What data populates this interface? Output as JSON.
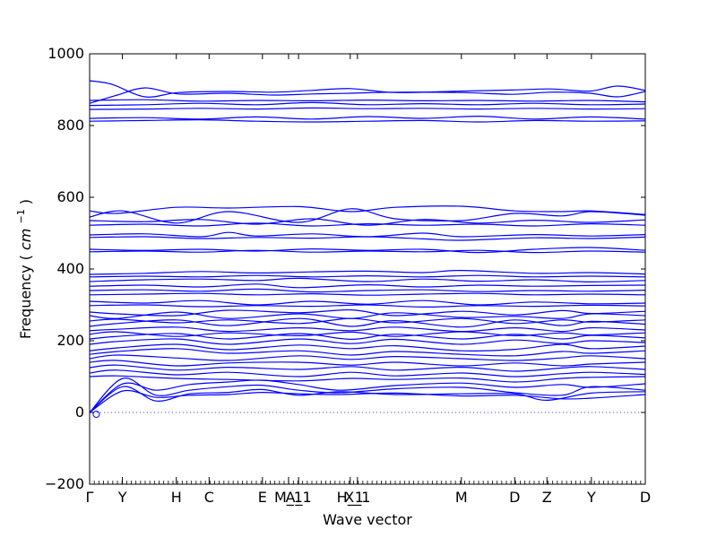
{
  "chart_data": {
    "type": "line",
    "title": "",
    "xlabel": "Wave vector",
    "ylabel": "Frequency",
    "ylabel_unit_base": "cm",
    "ylabel_unit_exp": "−1",
    "ylim": [
      -200,
      1000
    ],
    "yticks": [
      "−200",
      "0",
      "200",
      "400",
      "600",
      "800",
      "1000"
    ],
    "ytick_values": [
      -200,
      0,
      200,
      400,
      600,
      800,
      1000
    ],
    "x_range": [
      0,
      1
    ],
    "xticks": [
      {
        "label": "Γ",
        "x": 0.0
      },
      {
        "label": "Y",
        "x": 0.059
      },
      {
        "label": "H",
        "x": 0.156
      },
      {
        "label": "C",
        "x": 0.215
      },
      {
        "label": "E",
        "x": 0.311
      },
      {
        "label": "M_1",
        "x": 0.358
      },
      {
        "label": "A_1",
        "x": 0.376
      },
      {
        "label": "H_1",
        "x": 0.469
      },
      {
        "label": "X_1",
        "x": 0.482
      },
      {
        "label": "M",
        "x": 0.669
      },
      {
        "label": "D",
        "x": 0.765
      },
      {
        "label": "Z",
        "x": 0.823
      },
      {
        "label": "Y",
        "x": 0.903
      },
      {
        "label": "D",
        "x": 1.0
      }
    ],
    "grid": false,
    "zero_line": true,
    "colors": {
      "band": "#0000ff",
      "axis": "#000000",
      "zero_line": "#3344ff"
    },
    "series": [
      {
        "x": [
          0,
          0.04,
          0.1,
          0.16,
          0.25,
          0.33,
          0.4,
          0.47,
          0.55,
          0.67,
          0.76,
          0.83,
          0.9,
          0.95,
          1.0
        ],
        "values": [
          925,
          915,
          880,
          892,
          895,
          893,
          898,
          903,
          892,
          896,
          899,
          902,
          896,
          910,
          898
        ]
      },
      {
        "x": [
          0,
          0.05,
          0.1,
          0.16,
          0.25,
          0.33,
          0.4,
          0.47,
          0.55,
          0.67,
          0.76,
          0.83,
          0.9,
          0.95,
          1.0
        ],
        "values": [
          862,
          885,
          905,
          888,
          890,
          885,
          888,
          890,
          893,
          892,
          887,
          893,
          890,
          880,
          895
        ]
      },
      {
        "x": [
          0,
          0.1,
          0.2,
          0.3,
          0.4,
          0.5,
          0.6,
          0.7,
          0.8,
          0.9,
          1.0
        ],
        "values": [
          870,
          872,
          868,
          870,
          869,
          871,
          869,
          870,
          868,
          870,
          866
        ]
      },
      {
        "x": [
          0,
          0.1,
          0.2,
          0.3,
          0.4,
          0.5,
          0.6,
          0.7,
          0.8,
          0.9,
          1.0
        ],
        "values": [
          856,
          858,
          862,
          858,
          864,
          858,
          861,
          858,
          862,
          858,
          860
        ]
      },
      {
        "x": [
          0,
          0.1,
          0.2,
          0.3,
          0.4,
          0.5,
          0.6,
          0.7,
          0.8,
          0.9,
          1.0
        ],
        "values": [
          845,
          846,
          848,
          846,
          849,
          847,
          848,
          846,
          848,
          846,
          847
        ]
      },
      {
        "x": [
          0,
          0.1,
          0.2,
          0.3,
          0.4,
          0.5,
          0.6,
          0.7,
          0.8,
          0.9,
          1.0
        ],
        "values": [
          820,
          822,
          818,
          824,
          818,
          825,
          820,
          826,
          818,
          824,
          818
        ]
      },
      {
        "x": [
          0,
          0.1,
          0.2,
          0.3,
          0.4,
          0.5,
          0.6,
          0.7,
          0.8,
          0.9,
          1.0
        ],
        "values": [
          812,
          814,
          816,
          812,
          810,
          812,
          814,
          810,
          814,
          812,
          813
        ]
      },
      {
        "x": [
          0,
          0.05,
          0.156,
          0.25,
          0.376,
          0.47,
          0.55,
          0.669,
          0.765,
          0.85,
          0.903,
          1.0
        ],
        "values": [
          562,
          555,
          572,
          570,
          574,
          560,
          572,
          575,
          562,
          560,
          562,
          552
        ]
      },
      {
        "x": [
          0,
          0.06,
          0.156,
          0.25,
          0.376,
          0.47,
          0.55,
          0.669,
          0.765,
          0.85,
          0.903,
          1.0
        ],
        "values": [
          545,
          562,
          528,
          560,
          530,
          568,
          540,
          535,
          555,
          548,
          560,
          550
        ]
      },
      {
        "x": [
          0,
          0.1,
          0.2,
          0.3,
          0.4,
          0.5,
          0.6,
          0.7,
          0.8,
          0.9,
          1.0
        ],
        "values": [
          535,
          532,
          538,
          525,
          540,
          522,
          538,
          528,
          536,
          530,
          537
        ]
      },
      {
        "x": [
          0,
          0.1,
          0.2,
          0.3,
          0.4,
          0.5,
          0.6,
          0.7,
          0.8,
          0.9,
          1.0
        ],
        "values": [
          522,
          525,
          520,
          528,
          520,
          526,
          522,
          525,
          520,
          526,
          522
        ]
      },
      {
        "x": [
          0,
          0.1,
          0.2,
          0.25,
          0.3,
          0.4,
          0.5,
          0.6,
          0.669,
          0.8,
          0.9,
          1.0
        ],
        "values": [
          495,
          498,
          490,
          502,
          492,
          498,
          490,
          500,
          490,
          496,
          492,
          496
        ]
      },
      {
        "x": [
          0,
          0.1,
          0.2,
          0.3,
          0.4,
          0.5,
          0.6,
          0.669,
          0.8,
          0.9,
          1.0
        ],
        "values": [
          488,
          490,
          485,
          488,
          486,
          490,
          484,
          480,
          487,
          485,
          489
        ]
      },
      {
        "x": [
          0,
          0.1,
          0.2,
          0.3,
          0.4,
          0.5,
          0.6,
          0.7,
          0.8,
          0.9,
          1.0
        ],
        "values": [
          455,
          452,
          455,
          450,
          456,
          452,
          455,
          446,
          455,
          460,
          452
        ]
      },
      {
        "x": [
          0,
          0.1,
          0.2,
          0.3,
          0.4,
          0.5,
          0.6,
          0.7,
          0.8,
          0.9,
          1.0
        ],
        "values": [
          448,
          450,
          447,
          452,
          447,
          450,
          448,
          452,
          446,
          450,
          447
        ]
      },
      {
        "x": [
          0,
          0.1,
          0.2,
          0.3,
          0.4,
          0.5,
          0.6,
          0.669,
          0.8,
          0.9,
          1.0
        ],
        "values": [
          385,
          388,
          393,
          389,
          392,
          394,
          390,
          396,
          388,
          390,
          386
        ]
      },
      {
        "x": [
          0,
          0.1,
          0.2,
          0.3,
          0.4,
          0.5,
          0.6,
          0.7,
          0.8,
          0.9,
          1.0
        ],
        "values": [
          378,
          380,
          378,
          382,
          378,
          381,
          378,
          382,
          378,
          380,
          378
        ]
      },
      {
        "x": [
          0,
          0.1,
          0.2,
          0.3,
          0.376,
          0.5,
          0.6,
          0.7,
          0.8,
          0.9,
          1.0
        ],
        "values": [
          365,
          370,
          372,
          368,
          374,
          365,
          372,
          366,
          370,
          364,
          368
        ]
      },
      {
        "x": [
          0,
          0.1,
          0.2,
          0.3,
          0.376,
          0.5,
          0.6,
          0.7,
          0.8,
          0.9,
          1.0
        ],
        "values": [
          352,
          355,
          350,
          358,
          348,
          356,
          350,
          355,
          352,
          354,
          355
        ]
      },
      {
        "x": [
          0,
          0.1,
          0.2,
          0.3,
          0.4,
          0.5,
          0.6,
          0.7,
          0.8,
          0.9,
          1.0
        ],
        "values": [
          340,
          342,
          338,
          344,
          336,
          340,
          342,
          337,
          340,
          338,
          341
        ]
      },
      {
        "x": [
          0,
          0.1,
          0.2,
          0.3,
          0.4,
          0.5,
          0.6,
          0.7,
          0.8,
          0.9,
          1.0
        ],
        "values": [
          328,
          330,
          332,
          328,
          331,
          327,
          330,
          332,
          328,
          330,
          328
        ]
      },
      {
        "x": [
          0,
          0.1,
          0.2,
          0.3,
          0.4,
          0.5,
          0.6,
          0.7,
          0.8,
          0.9,
          1.0
        ],
        "values": [
          310,
          305,
          312,
          300,
          310,
          302,
          312,
          300,
          308,
          303,
          305
        ]
      },
      {
        "x": [
          0,
          0.1,
          0.2,
          0.3,
          0.4,
          0.5,
          0.6,
          0.7,
          0.8,
          0.9,
          1.0
        ],
        "values": [
          298,
          300,
          295,
          298,
          296,
          300,
          294,
          298,
          296,
          299,
          297
        ]
      },
      {
        "x": [
          0,
          0.05,
          0.156,
          0.25,
          0.376,
          0.47,
          0.55,
          0.669,
          0.765,
          0.85,
          0.903,
          1.0
        ],
        "values": [
          280,
          275,
          270,
          285,
          278,
          286,
          270,
          282,
          272,
          284,
          276,
          282
        ]
      },
      {
        "x": [
          0,
          0.05,
          0.156,
          0.25,
          0.376,
          0.47,
          0.55,
          0.669,
          0.765,
          0.85,
          0.903,
          1.0
        ],
        "values": [
          270,
          262,
          280,
          262,
          275,
          262,
          278,
          265,
          268,
          262,
          275,
          270
        ]
      },
      {
        "x": [
          0,
          0.05,
          0.156,
          0.25,
          0.376,
          0.47,
          0.55,
          0.669,
          0.765,
          0.85,
          0.903,
          1.0
        ],
        "values": [
          255,
          260,
          250,
          258,
          248,
          262,
          250,
          262,
          248,
          258,
          252,
          258
        ]
      },
      {
        "x": [
          0,
          0.05,
          0.156,
          0.25,
          0.376,
          0.47,
          0.55,
          0.669,
          0.765,
          0.85,
          0.903,
          1.0
        ],
        "values": [
          240,
          248,
          258,
          242,
          262,
          240,
          256,
          238,
          258,
          242,
          254,
          246
        ]
      },
      {
        "x": [
          0,
          0.05,
          0.156,
          0.25,
          0.376,
          0.47,
          0.55,
          0.669,
          0.765,
          0.85,
          0.903,
          1.0
        ],
        "values": [
          228,
          232,
          238,
          226,
          236,
          228,
          238,
          226,
          236,
          226,
          236,
          230
        ]
      },
      {
        "x": [
          0,
          0.05,
          0.156,
          0.25,
          0.376,
          0.47,
          0.55,
          0.669,
          0.765,
          0.85,
          0.903,
          1.0
        ],
        "values": [
          218,
          225,
          212,
          222,
          214,
          224,
          212,
          225,
          214,
          222,
          216,
          222
        ]
      },
      {
        "x": [
          0,
          0.05,
          0.156,
          0.25,
          0.376,
          0.47,
          0.55,
          0.669,
          0.765,
          0.85,
          0.903,
          1.0
        ],
        "values": [
          205,
          212,
          220,
          205,
          220,
          204,
          218,
          205,
          218,
          205,
          215,
          208
        ]
      },
      {
        "x": [
          0,
          0.05,
          0.156,
          0.25,
          0.376,
          0.47,
          0.55,
          0.669,
          0.765,
          0.85,
          0.903,
          1.0
        ],
        "values": [
          190,
          198,
          205,
          190,
          205,
          192,
          204,
          190,
          202,
          192,
          200,
          195
        ]
      },
      {
        "x": [
          0,
          0.05,
          0.156,
          0.25,
          0.376,
          0.47,
          0.55,
          0.669,
          0.765,
          0.85,
          0.903,
          1.0
        ],
        "values": [
          172,
          180,
          190,
          175,
          188,
          178,
          186,
          172,
          176,
          190,
          178,
          185
        ]
      },
      {
        "x": [
          0,
          0.05,
          0.156,
          0.25,
          0.376,
          0.47,
          0.55,
          0.669,
          0.765,
          0.85,
          0.903,
          1.0
        ],
        "values": [
          162,
          170,
          178,
          165,
          172,
          160,
          170,
          162,
          158,
          170,
          165,
          172
        ]
      },
      {
        "x": [
          0,
          0.05,
          0.156,
          0.25,
          0.376,
          0.47,
          0.55,
          0.669,
          0.765,
          0.85,
          0.903,
          1.0
        ],
        "values": [
          150,
          160,
          152,
          145,
          158,
          148,
          156,
          150,
          145,
          152,
          158,
          150
        ]
      },
      {
        "x": [
          0,
          0.05,
          0.156,
          0.25,
          0.376,
          0.47,
          0.55,
          0.669,
          0.765,
          0.85,
          0.903,
          1.0
        ],
        "values": [
          140,
          145,
          130,
          138,
          140,
          132,
          140,
          130,
          138,
          130,
          135,
          140
        ]
      },
      {
        "x": [
          0,
          0.05,
          0.156,
          0.25,
          0.376,
          0.47,
          0.55,
          0.669,
          0.765,
          0.85,
          0.903,
          1.0
        ],
        "values": [
          125,
          132,
          118,
          126,
          120,
          128,
          118,
          126,
          115,
          124,
          128,
          120
        ]
      },
      {
        "x": [
          0,
          0.05,
          0.156,
          0.25,
          0.376,
          0.47,
          0.55,
          0.669,
          0.765,
          0.85,
          0.903,
          1.0
        ],
        "values": [
          110,
          118,
          105,
          112,
          100,
          112,
          102,
          110,
          100,
          108,
          112,
          106
        ]
      },
      {
        "x": [
          0,
          0.05,
          0.156,
          0.25,
          0.376,
          0.47,
          0.55,
          0.669,
          0.765,
          0.85,
          0.903,
          1.0
        ],
        "values": [
          100,
          102,
          95,
          92,
          88,
          95,
          92,
          96,
          85,
          95,
          98,
          100
        ]
      },
      {
        "x": [
          0,
          0.06,
          0.12,
          0.18,
          0.25,
          0.31,
          0.376,
          0.45,
          0.55,
          0.669,
          0.765,
          0.85,
          0.903,
          1.0
        ],
        "values": [
          0,
          80,
          62,
          78,
          85,
          90,
          78,
          62,
          75,
          82,
          70,
          78,
          70,
          80
        ]
      },
      {
        "x": [
          0,
          0.06,
          0.12,
          0.18,
          0.25,
          0.31,
          0.376,
          0.45,
          0.55,
          0.669,
          0.765,
          0.85,
          0.903,
          1.0
        ],
        "values": [
          0,
          95,
          48,
          62,
          72,
          76,
          62,
          55,
          66,
          70,
          55,
          48,
          72,
          62
        ]
      },
      {
        "x": [
          0,
          0.06,
          0.12,
          0.18,
          0.25,
          0.31,
          0.376,
          0.45,
          0.55,
          0.669,
          0.765,
          0.823,
          0.903,
          1.0
        ],
        "values": [
          0,
          72,
          32,
          52,
          56,
          64,
          48,
          58,
          50,
          52,
          52,
          34,
          54,
          58
        ]
      },
      {
        "x": [
          0,
          0.06,
          0.12,
          0.18,
          0.25,
          0.31,
          0.376,
          0.45,
          0.55,
          0.669,
          0.765,
          0.85,
          0.903,
          1.0
        ],
        "values": [
          0,
          60,
          42,
          48,
          50,
          56,
          52,
          50,
          54,
          46,
          48,
          38,
          40,
          50
        ]
      }
    ]
  }
}
